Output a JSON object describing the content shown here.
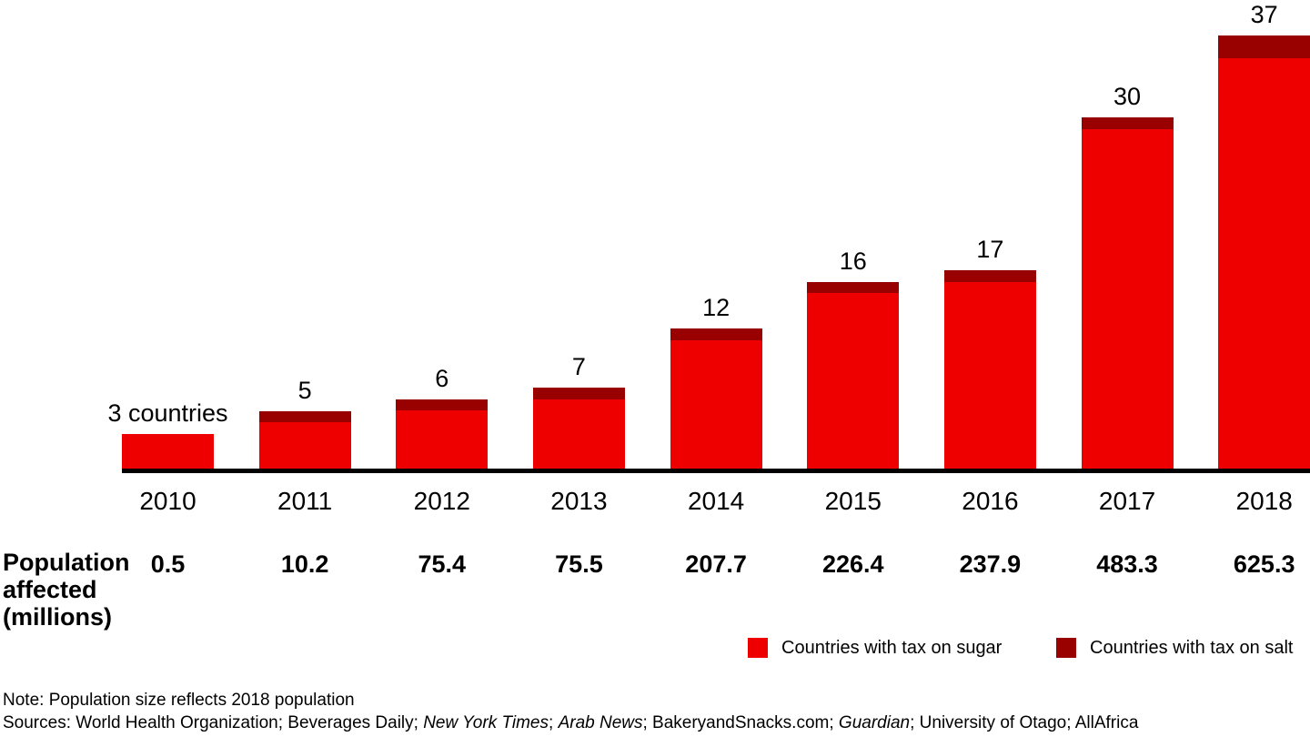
{
  "chart_data": {
    "type": "bar",
    "stacked": true,
    "title": "",
    "categories": [
      "2010",
      "2011",
      "2012",
      "2013",
      "2014",
      "2015",
      "2016",
      "2017",
      "2018"
    ],
    "series": [
      {
        "name": "Countries with tax on sugar",
        "color": "#EE0000",
        "values": [
          3,
          4,
          5,
          6,
          11,
          15,
          16,
          29,
          35
        ]
      },
      {
        "name": "Countries with tax on salt",
        "color": "#990000",
        "values": [
          0,
          1,
          1,
          1,
          1,
          1,
          1,
          1,
          2
        ]
      }
    ],
    "totals": [
      3,
      5,
      6,
      7,
      12,
      16,
      17,
      30,
      37
    ],
    "bar_labels": [
      "3 countries",
      "5",
      "6",
      "7",
      "12",
      "16",
      "17",
      "30",
      "37"
    ],
    "population_affected_millions": [
      "0.5",
      "10.2",
      "75.4",
      "75.5",
      "207.7",
      "226.4",
      "237.9",
      "483.3",
      "625.3"
    ],
    "row_label_lines": [
      "Population",
      "affected",
      "(millions)"
    ],
    "xlabel": "",
    "ylabel": "",
    "grid": "off",
    "y_axis_ticks": "none",
    "legend_position": "bottom-right"
  },
  "legend": [
    {
      "label": "Countries with tax on sugar",
      "color": "#EE0000"
    },
    {
      "label": "Countries with tax on salt",
      "color": "#990000"
    }
  ],
  "note": "Note: Population size reflects 2018 population",
  "sources_parts": [
    {
      "text": "Sources: World Health Organization; Beverages Daily; ",
      "italic": false
    },
    {
      "text": "New York Times",
      "italic": true
    },
    {
      "text": "; ",
      "italic": false
    },
    {
      "text": "Arab News",
      "italic": true
    },
    {
      "text": "; BakeryandSnacks.com; ",
      "italic": false
    },
    {
      "text": "Guardian",
      "italic": true
    },
    {
      "text": "; University of Otago; AllAfrica",
      "italic": false
    }
  ]
}
